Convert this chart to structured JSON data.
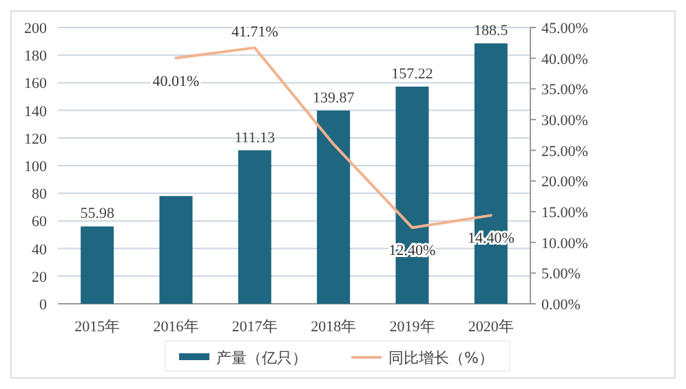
{
  "chart_data": {
    "type": "bar",
    "categories": [
      "2015年",
      "2016年",
      "2017年",
      "2018年",
      "2019年",
      "2020年"
    ],
    "series": [
      {
        "name": "产量（亿只）",
        "color": "#1f6680",
        "values": [
          55.98,
          78,
          111.13,
          139.87,
          157.22,
          188.5
        ],
        "value_labels": [
          "55.98",
          null,
          "111.13",
          "139.87",
          "157.22",
          "188.5"
        ]
      },
      {
        "name": "同比增长（%）",
        "type": "line",
        "axis": "y2",
        "color": "#f2b38e",
        "values": [
          null,
          40.01,
          41.71,
          26,
          12.4,
          14.4
        ],
        "value_labels": [
          null,
          "40.01%",
          "41.71%",
          null,
          "12.40%",
          "14.40%"
        ]
      }
    ],
    "ylim": [
      0,
      200
    ],
    "yticks": [
      0,
      20,
      40,
      60,
      80,
      100,
      120,
      140,
      160,
      180,
      200
    ],
    "y2lim": [
      0,
      45
    ],
    "y2ticks": [
      {
        "value": 0,
        "label": "0.00%"
      },
      {
        "value": 5,
        "label": "5.00%"
      },
      {
        "value": 10,
        "label": "10.00%"
      },
      {
        "value": 15,
        "label": "15.00%"
      },
      {
        "value": 20,
        "label": "20.00%"
      },
      {
        "value": 25,
        "label": "25.00%"
      },
      {
        "value": 30,
        "label": "30.00%"
      },
      {
        "value": 35,
        "label": "35.00%"
      },
      {
        "value": 40,
        "label": "40.00%"
      },
      {
        "value": 45,
        "label": "45.00%"
      }
    ],
    "grid": "y",
    "legend": "bottom"
  }
}
